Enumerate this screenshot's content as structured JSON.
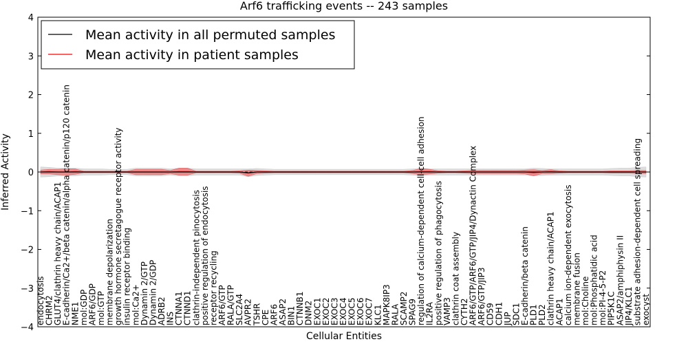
{
  "chart_data": {
    "type": "line",
    "title": "Arf6 trafficking events -- 243 samples",
    "xlabel": "Cellular Entities",
    "ylabel": "Inferred Activity",
    "ylim": [
      -4,
      4
    ],
    "yticks": [
      "−4",
      "−3",
      "−2",
      "−1",
      "0",
      "1",
      "2",
      "3",
      "4"
    ],
    "yticks_values": [
      -4,
      -3,
      -2,
      -1,
      0,
      1,
      2,
      3,
      4
    ],
    "legend_position": "top-left",
    "categories": [
      "endocytosis",
      "CHRM2",
      "GLUT4/clathrin heavy chain/ACAP1",
      "E-cadherin/Ca2+/beta catenin/alpha catenin/p120 catenin",
      "NME1",
      "mol:GDP",
      "ARF6/GDP",
      "mol:GTP",
      "membrane depolarization",
      "growth hormone secretagogue receptor activity",
      "insulin receptor binding",
      "mol:Ca2+",
      "Dynamin 2/GTP",
      "Dynamin 2/GDP",
      "ADRB2",
      "INS",
      "CTNNA1",
      "CTNND1",
      "clathrin-independent pinocytosis",
      "positive regulation of endocytosis",
      "receptor recycling",
      "ARF6/GTP",
      "RALA/GTP",
      "SLC2A4",
      "AVPR2",
      "TSHR",
      "CPE",
      "ARF6",
      "ASAP2",
      "BIN1",
      "CTNNB1",
      "DNM2",
      "EXOC1",
      "EXOC2",
      "EXOC3",
      "EXOC4",
      "EXOC5",
      "EXOC6",
      "EXOC7",
      "KLC1",
      "MAPK8IP3",
      "RALA",
      "SCAMP2",
      "SPAG9",
      "regulation of calcium-dependent cell-cell adhesion",
      "IL2RA",
      "positive regulation of phagocytosis",
      "VAMP3",
      "clathrin coat assembly",
      "CYTH2",
      "ARF6/GTP/ARF6/GTP/JIP4/Dynactin Complex",
      "ARF6/GTP/JIP3",
      "CD59",
      "CDH1",
      "JUP",
      "SDC1",
      "E-cadherin/beta catenin",
      "PLD1",
      "PLD2",
      "clathrin heavy chain/ACAP1",
      "ACAP1",
      "calcium ion-dependent exocytosis",
      "membrane fusion",
      "mol:Choline",
      "mol:Phosphatidic acid",
      "mol:PI-4-5-P2",
      "PIP5K1C",
      "ASAP2/amphiphysin II",
      "JIP4/KLC1",
      "substrate adhesion-dependent cell spreading",
      "exocyst"
    ],
    "series": [
      {
        "name": "Mean activity in all permuted samples",
        "color": "#000000",
        "values": [
          0,
          0,
          0,
          0,
          0,
          0,
          0,
          0,
          0,
          0,
          0,
          0,
          0,
          0,
          0,
          0,
          0,
          0,
          0,
          0,
          0,
          0,
          0,
          0,
          -0.02,
          0,
          0,
          0,
          0,
          0,
          0,
          0,
          0,
          0,
          0,
          0,
          0,
          0,
          0,
          0,
          0,
          0,
          0,
          0,
          0,
          0,
          0,
          0,
          0,
          0,
          0,
          0,
          0,
          0,
          0,
          0,
          0,
          0,
          0,
          0,
          0,
          0,
          0,
          0,
          0,
          0,
          0,
          0,
          0,
          0,
          0
        ]
      },
      {
        "name": "Mean activity in patient samples",
        "color": "#ff0000",
        "values": [
          0,
          0.01,
          0,
          0,
          0.01,
          0,
          0,
          0,
          0,
          0,
          0,
          0,
          0,
          0,
          0,
          0,
          0.01,
          0.01,
          0,
          0,
          0,
          0,
          0,
          0,
          -0.03,
          0,
          0,
          0,
          0,
          0,
          0,
          0,
          0,
          0,
          0,
          0,
          0,
          0,
          0,
          0,
          0,
          0,
          0,
          0,
          0.01,
          0.01,
          0,
          0,
          0,
          0,
          0,
          0,
          0,
          0,
          0,
          0,
          0,
          -0.02,
          0,
          0.01,
          0,
          0,
          0,
          0,
          0,
          0,
          0,
          0,
          0,
          0,
          0
        ],
        "band": [
          0.05,
          0.06,
          0.07,
          0.08,
          0.07,
          0.02,
          0.02,
          0.02,
          0.02,
          0.02,
          0.02,
          0.07,
          0.07,
          0.07,
          0.07,
          0.04,
          0.09,
          0.09,
          0.02,
          0.02,
          0.02,
          0.02,
          0.02,
          0.03,
          0.08,
          0.04,
          0.03,
          0.02,
          0.02,
          0.02,
          0.02,
          0.02,
          0.02,
          0.02,
          0.02,
          0.02,
          0.02,
          0.02,
          0.02,
          0.02,
          0.02,
          0.02,
          0.02,
          0.04,
          0.08,
          0.06,
          0.03,
          0.02,
          0.02,
          0.03,
          0.04,
          0.04,
          0.04,
          0.04,
          0.04,
          0.04,
          0.05,
          0.08,
          0.04,
          0.05,
          0.03,
          0.02,
          0.02,
          0.02,
          0.02,
          0.02,
          0.03,
          0.03,
          0.03,
          0.04,
          0.04
        ]
      }
    ],
    "permuted_band": [
      0.13,
      0.12,
      0.1,
      0.1,
      0.1,
      0.08,
      0.08,
      0.08,
      0.07,
      0.07,
      0.07,
      0.1,
      0.1,
      0.1,
      0.1,
      0.08,
      0.1,
      0.1,
      0.08,
      0.08,
      0.08,
      0.08,
      0.08,
      0.08,
      0.1,
      0.09,
      0.08,
      0.07,
      0.07,
      0.07,
      0.07,
      0.07,
      0.07,
      0.07,
      0.07,
      0.07,
      0.07,
      0.07,
      0.07,
      0.07,
      0.07,
      0.07,
      0.07,
      0.08,
      0.1,
      0.08,
      0.08,
      0.08,
      0.08,
      0.08,
      0.08,
      0.08,
      0.08,
      0.08,
      0.08,
      0.08,
      0.08,
      0.1,
      0.09,
      0.08,
      0.08,
      0.08,
      0.08,
      0.08,
      0.08,
      0.08,
      0.09,
      0.1,
      0.1,
      0.12,
      0.13
    ]
  }
}
